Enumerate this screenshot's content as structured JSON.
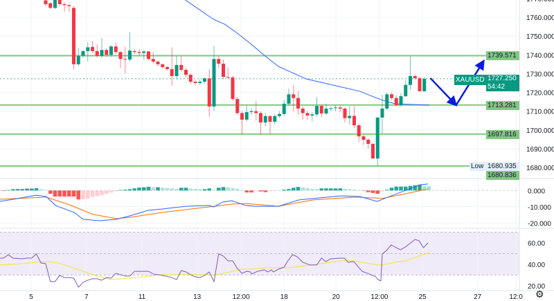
{
  "symbol": "XAUUSD",
  "last_price": "1727.250",
  "countdown": "54:42",
  "low_label": "Low",
  "low_value": "1680.935",
  "colors": {
    "up": "#089981",
    "down": "#f23645",
    "level": "#81c784",
    "ma": "#2962ff",
    "macd": "#2962ff",
    "signal": "#ff6d00",
    "rsi": "#7e57c2",
    "rsi_ma": "#f5e52a",
    "arrow": "#0b1be0"
  },
  "chart_data": [
    {
      "type": "candlestick",
      "title": "",
      "x_ticks": [
        {
          "bar": -3.1,
          "label": "5"
        },
        {
          "bar": 8.7,
          "label": "7"
        },
        {
          "bar": 20.6,
          "label": "11"
        },
        {
          "bar": 32.4,
          "label": "13"
        },
        {
          "bar": 41.8,
          "label": "12:00"
        },
        {
          "bar": 51,
          "label": "18"
        },
        {
          "bar": 62.1,
          "label": "20"
        },
        {
          "bar": 71.4,
          "label": "12:00"
        },
        {
          "bar": 80.6,
          "label": "25"
        },
        {
          "bar": 92.4,
          "label": "27"
        },
        {
          "bar": 100.6,
          "label": "12:0"
        }
      ],
      "y_ticks": [
        "1770.000",
        "1760.000",
        "1750.000",
        "1740.000",
        "1730.000",
        "1720.000",
        "1710.000",
        "1700.000",
        "1690.000",
        "1680.000"
      ],
      "ylim": [
        1680,
        1770
      ],
      "grid": true,
      "candles_ohlc": [
        [
          1769,
          1770,
          1766,
          1767
        ],
        [
          1767.5,
          1768,
          1764.5,
          1765
        ],
        [
          1765,
          1770,
          1764.5,
          1770
        ],
        [
          1770,
          1770.5,
          1766,
          1767
        ],
        [
          1767,
          1768,
          1763,
          1766.5
        ],
        [
          1766.5,
          1767,
          1763,
          1766
        ],
        [
          1765,
          1766,
          1732.4,
          1735
        ],
        [
          1735,
          1743.8,
          1734,
          1739.4
        ],
        [
          1739.5,
          1742.5,
          1738.5,
          1742
        ],
        [
          1742,
          1746.7,
          1736.6,
          1744
        ],
        [
          1744.2,
          1747.4,
          1741,
          1742
        ],
        [
          1742,
          1745.5,
          1738.5,
          1739.4
        ],
        [
          1739.4,
          1749,
          1738.5,
          1742.6
        ],
        [
          1742.6,
          1743.5,
          1739,
          1740
        ],
        [
          1740,
          1745.1,
          1739,
          1744.5
        ],
        [
          1744.5,
          1746.7,
          1740.5,
          1741.5
        ],
        [
          1741.5,
          1742,
          1733,
          1737.8
        ],
        [
          1737.8,
          1744.4,
          1730,
          1737.5
        ],
        [
          1737.5,
          1752,
          1736.5,
          1742.3
        ],
        [
          1742,
          1743,
          1740.5,
          1741.5
        ],
        [
          1741.5,
          1743,
          1739.5,
          1741
        ],
        [
          1741,
          1742.5,
          1737.5,
          1741.8
        ],
        [
          1741.8,
          1742,
          1737,
          1737.8
        ],
        [
          1737.8,
          1741.5,
          1735.5,
          1736.4
        ],
        [
          1736.4,
          1737,
          1734,
          1735
        ],
        [
          1735,
          1735.5,
          1732.5,
          1733.5
        ],
        [
          1733.5,
          1734,
          1731.5,
          1732.4
        ],
        [
          1732.4,
          1744,
          1723.5,
          1728.7
        ],
        [
          1728.7,
          1739.5,
          1727,
          1734.6
        ],
        [
          1734.6,
          1739.5,
          1731,
          1732
        ],
        [
          1732,
          1733,
          1728,
          1729.4
        ],
        [
          1729.4,
          1730,
          1724.5,
          1725.7
        ],
        [
          1725.7,
          1726.5,
          1723.5,
          1725
        ],
        [
          1725,
          1727,
          1724,
          1725.7
        ],
        [
          1725.7,
          1728,
          1724.5,
          1727.5
        ],
        [
          1727.5,
          1732.4,
          1707,
          1712.5
        ],
        [
          1712.5,
          1744.6,
          1710,
          1737.8
        ],
        [
          1737.8,
          1739.5,
          1733,
          1735.3
        ],
        [
          1735.3,
          1737.5,
          1727,
          1728.3
        ],
        [
          1728.3,
          1733.4,
          1727,
          1728
        ],
        [
          1728,
          1729,
          1715.5,
          1716.5
        ],
        [
          1716.5,
          1717.5,
          1708,
          1709
        ],
        [
          1709,
          1710,
          1697.4,
          1705.5
        ],
        [
          1705.5,
          1713,
          1704.5,
          1709.5
        ],
        [
          1709.5,
          1711.5,
          1708,
          1710
        ],
        [
          1710,
          1715.5,
          1705,
          1709
        ],
        [
          1709,
          1710,
          1697.5,
          1704
        ],
        [
          1704,
          1709,
          1702,
          1707.4
        ],
        [
          1707.4,
          1708,
          1697.5,
          1704.4
        ],
        [
          1704.4,
          1708.5,
          1703,
          1707.4
        ],
        [
          1707.4,
          1710,
          1706.5,
          1708.5
        ],
        [
          1708.5,
          1716,
          1707.5,
          1714
        ],
        [
          1714,
          1722,
          1713,
          1719
        ],
        [
          1719,
          1724,
          1710,
          1717
        ],
        [
          1717,
          1720.7,
          1708,
          1711.4
        ],
        [
          1711.4,
          1712.5,
          1705.5,
          1709
        ],
        [
          1709,
          1710,
          1705.5,
          1707.7
        ],
        [
          1707.7,
          1709.5,
          1704.5,
          1708.3
        ],
        [
          1708.3,
          1717.5,
          1707,
          1712.8
        ],
        [
          1712.8,
          1713.5,
          1707,
          1708.8
        ],
        [
          1708.8,
          1714,
          1708,
          1711.4
        ],
        [
          1711.4,
          1712.5,
          1710,
          1711.6
        ],
        [
          1711.6,
          1713,
          1710,
          1712
        ],
        [
          1712,
          1713,
          1709.5,
          1711.4
        ],
        [
          1711.4,
          1712,
          1704,
          1706.3
        ],
        [
          1706.3,
          1712.6,
          1703,
          1707.5
        ],
        [
          1707.5,
          1712.6,
          1701,
          1702.5
        ],
        [
          1702.5,
          1703.5,
          1693.5,
          1696.6
        ],
        [
          1696.6,
          1697.5,
          1692,
          1694.8
        ],
        [
          1694.8,
          1695.5,
          1690,
          1692.6
        ],
        [
          1692.6,
          1693,
          1684.8,
          1684.8
        ],
        [
          1684.8,
          1707,
          1680.9,
          1706.6
        ],
        [
          1706.6,
          1718.8,
          1698,
          1711.4
        ],
        [
          1711.4,
          1720,
          1710.5,
          1719
        ],
        [
          1719,
          1720,
          1716,
          1717
        ],
        [
          1717,
          1718.5,
          1712.5,
          1713.2
        ],
        [
          1713.2,
          1719.5,
          1712.5,
          1718
        ],
        [
          1718,
          1726.5,
          1717.5,
          1724
        ],
        [
          1724,
          1739.2,
          1721.5,
          1728.7
        ],
        [
          1728.7,
          1729.5,
          1726.5,
          1727.6
        ],
        [
          1727.6,
          1728.5,
          1720.6,
          1720.6
        ],
        [
          1720.6,
          1728.2,
          1720.5,
          1727.25
        ]
      ],
      "moving_average": [
        [
          29,
          1771
        ],
        [
          30,
          1769
        ],
        [
          35.9,
          1758.9
        ],
        [
          38.3,
          1756.3
        ],
        [
          40.8,
          1751.9
        ],
        [
          43.8,
          1746
        ],
        [
          46.8,
          1739.7
        ],
        [
          49.8,
          1733.8
        ],
        [
          55.7,
          1727.2
        ],
        [
          67.2,
          1720.6
        ],
        [
          70.2,
          1717.6
        ],
        [
          72.1,
          1715.8
        ],
        [
          74.7,
          1714
        ],
        [
          82.1,
          1713.2
        ]
      ],
      "horizontal_levels": [
        {
          "value": 1739.571,
          "label": "1739.571"
        },
        {
          "value": 1713.281,
          "label": "1713.281"
        },
        {
          "value": 1697.816,
          "label": "1697.816"
        },
        {
          "value": 1680.836,
          "label": "1680.836"
        }
      ],
      "projection_arrows": [
        [
          82.3,
          1727.6
        ],
        [
          87.8,
          1713.2
        ],
        [
          93.7,
          1736.8
        ]
      ]
    },
    {
      "type": "macd",
      "y_ticks": [
        {
          "value": 0,
          "label": "0.000"
        },
        {
          "value": -10,
          "label": "-10.000"
        },
        {
          "value": -20,
          "label": "-20.000"
        }
      ],
      "hist_first_bar": -9,
      "histogram": [
        -0.3,
        0.3,
        0.8,
        0.9,
        0.9,
        1.2,
        1.2,
        1.4,
        0.8,
        0.3,
        -2,
        -3.7,
        -3.7,
        -3.7,
        -3.7,
        -3.7,
        -5.5,
        -5.4,
        -5,
        -4,
        -3.5,
        -3,
        -2,
        -1.3,
        -0.5,
        0.3,
        0.5,
        0.8,
        1.3,
        1.8,
        2,
        2.3,
        2,
        2,
        1.8,
        1.5,
        1.3,
        1,
        1.7,
        1.7,
        1.2,
        1,
        0.8,
        0.8,
        1.3,
        0.3,
        1.7,
        2.1,
        2,
        1.5,
        1,
        0.3,
        -1.2,
        -1.2,
        -0.6,
        -0.6,
        -1,
        -0.4,
        -0.3,
        -0.2,
        0.5,
        0.9,
        1.7,
        2.2,
        1.8,
        1.5,
        1,
        0.8,
        1.3,
        1.3,
        1.3,
        1.3,
        1.3,
        1,
        0.8,
        0.6,
        0.3,
        -0.2,
        -1,
        -1.5,
        -2,
        -0.6,
        0.4,
        1.7,
        2.4,
        2.4,
        2.4,
        2.8,
        3.2,
        3.5,
        2.8,
        2.7
      ],
      "macd": [
        [
          -9.8,
          -6.7
        ],
        [
          -6.9,
          -5.4
        ],
        [
          -2.1,
          -2.9
        ],
        [
          0.1,
          -3.7
        ],
        [
          2.1,
          -9.2
        ],
        [
          6.1,
          -13.5
        ],
        [
          8,
          -17.7
        ],
        [
          11.5,
          -18.6
        ],
        [
          15.1,
          -17.7
        ],
        [
          18,
          -15.6
        ],
        [
          21.9,
          -12.2
        ],
        [
          24.9,
          -11.4
        ],
        [
          30,
          -9.7
        ],
        [
          34.9,
          -9.2
        ],
        [
          35.9,
          -10.1
        ],
        [
          37.9,
          -7.1
        ],
        [
          39.8,
          -6.3
        ],
        [
          42.8,
          -9.2
        ],
        [
          44.9,
          -9.7
        ],
        [
          49.8,
          -9.7
        ],
        [
          54.2,
          -5.8
        ],
        [
          63.2,
          -3.3
        ],
        [
          67.2,
          -3.7
        ],
        [
          70.9,
          -6.7
        ],
        [
          73.2,
          -4.1
        ],
        [
          77,
          0.1
        ],
        [
          80,
          3.5
        ],
        [
          81.8,
          4
        ]
      ],
      "signal": [
        [
          -9.8,
          -5.4
        ],
        [
          0.1,
          -4.1
        ],
        [
          5.1,
          -8.8
        ],
        [
          10,
          -14.6
        ],
        [
          15.1,
          -17.3
        ],
        [
          18,
          -16.5
        ],
        [
          24.9,
          -13.5
        ],
        [
          34.9,
          -10.1
        ],
        [
          39.8,
          -8.4
        ],
        [
          42.8,
          -8
        ],
        [
          49.8,
          -9.7
        ],
        [
          57.2,
          -5.8
        ],
        [
          66.2,
          -4.1
        ],
        [
          72.1,
          -4.8
        ],
        [
          77,
          -2
        ],
        [
          81.8,
          1
        ]
      ]
    },
    {
      "type": "rsi",
      "y_ticks": [
        {
          "value": 60,
          "label": "60.00"
        },
        {
          "value": 40,
          "label": "40.00"
        },
        {
          "value": 20,
          "label": "20.00"
        }
      ],
      "bands": [
        70,
        50,
        30
      ],
      "rsi": [
        [
          -10,
          45.8
        ],
        [
          -9,
          45.8
        ],
        [
          -8,
          49
        ],
        [
          -7,
          45.8
        ],
        [
          -5,
          45.2
        ],
        [
          -4,
          45.8
        ],
        [
          -3,
          45.8
        ],
        [
          -2,
          49.7
        ],
        [
          -1,
          41.3
        ],
        [
          0,
          40.6
        ],
        [
          1,
          23.9
        ],
        [
          2,
          23.9
        ],
        [
          3,
          29.7
        ],
        [
          4,
          27.7
        ],
        [
          5,
          27.7
        ],
        [
          6,
          27.1
        ],
        [
          7,
          18.7
        ],
        [
          8,
          23.2
        ],
        [
          9,
          25.2
        ],
        [
          10,
          26.5
        ],
        [
          11,
          26.5
        ],
        [
          12,
          25.2
        ],
        [
          13,
          27.7
        ],
        [
          14,
          27.1
        ],
        [
          15,
          31.6
        ],
        [
          16,
          30.3
        ],
        [
          17,
          29
        ],
        [
          18,
          29
        ],
        [
          19,
          33.5
        ],
        [
          20,
          33.5
        ],
        [
          22,
          33.5
        ],
        [
          23,
          31
        ],
        [
          25,
          29.7
        ],
        [
          27,
          27.7
        ],
        [
          28,
          25.8
        ],
        [
          29,
          34.2
        ],
        [
          30,
          32.9
        ],
        [
          31,
          30.3
        ],
        [
          32,
          28.4
        ],
        [
          33,
          27.7
        ],
        [
          34,
          29.7
        ],
        [
          35,
          32.9
        ],
        [
          36,
          23.9
        ],
        [
          37,
          49.7
        ],
        [
          38,
          47.7
        ],
        [
          39,
          43.2
        ],
        [
          40,
          43.2
        ],
        [
          41,
          36.1
        ],
        [
          42,
          31.6
        ],
        [
          43,
          33.5
        ],
        [
          43.8,
          32.9
        ],
        [
          44.1,
          31
        ],
        [
          45.3,
          33.5
        ],
        [
          46.8,
          34.8
        ],
        [
          47.5,
          32.9
        ],
        [
          48.3,
          34.8
        ],
        [
          48.7,
          32.9
        ],
        [
          49.8,
          35.5
        ],
        [
          51,
          37.4
        ],
        [
          51.7,
          42.6
        ],
        [
          52.8,
          49
        ],
        [
          53.8,
          47.1
        ],
        [
          55,
          41.9
        ],
        [
          56.5,
          39.4
        ],
        [
          58,
          39.4
        ],
        [
          59,
          45.8
        ],
        [
          59.9,
          42.6
        ],
        [
          61,
          45.2
        ],
        [
          63.2,
          45.8
        ],
        [
          63.9,
          45.8
        ],
        [
          64.7,
          41.9
        ],
        [
          65.9,
          42.6
        ],
        [
          67.7,
          33.5
        ],
        [
          69.2,
          31
        ],
        [
          70.6,
          28.4
        ],
        [
          71.1,
          25.8
        ],
        [
          71.7,
          24.5
        ],
        [
          72,
          49.7
        ],
        [
          72.9,
          52.9
        ],
        [
          73.9,
          58.1
        ],
        [
          75.9,
          53.5
        ],
        [
          76.9,
          56.1
        ],
        [
          78.1,
          60
        ],
        [
          79,
          63.2
        ],
        [
          79.9,
          61.9
        ],
        [
          80.8,
          55.5
        ],
        [
          81.8,
          60
        ]
      ],
      "rsi_ma": [
        [
          -10,
          39.4
        ],
        [
          -5,
          40.6
        ],
        [
          -1,
          42.6
        ],
        [
          2,
          41.9
        ],
        [
          5,
          38.1
        ],
        [
          10,
          30.3
        ],
        [
          14,
          25.8
        ],
        [
          18,
          27.1
        ],
        [
          25,
          30.3
        ],
        [
          35,
          30.3
        ],
        [
          36,
          29.7
        ],
        [
          40,
          33.5
        ],
        [
          42,
          35.5
        ],
        [
          44,
          35.5
        ],
        [
          47,
          36.8
        ],
        [
          52,
          36.8
        ],
        [
          57,
          39.4
        ],
        [
          64,
          43.9
        ],
        [
          66,
          43.2
        ],
        [
          71,
          39.4
        ],
        [
          72,
          39.4
        ],
        [
          75,
          42
        ],
        [
          77,
          43.2
        ],
        [
          82,
          50.9
        ]
      ]
    }
  ]
}
